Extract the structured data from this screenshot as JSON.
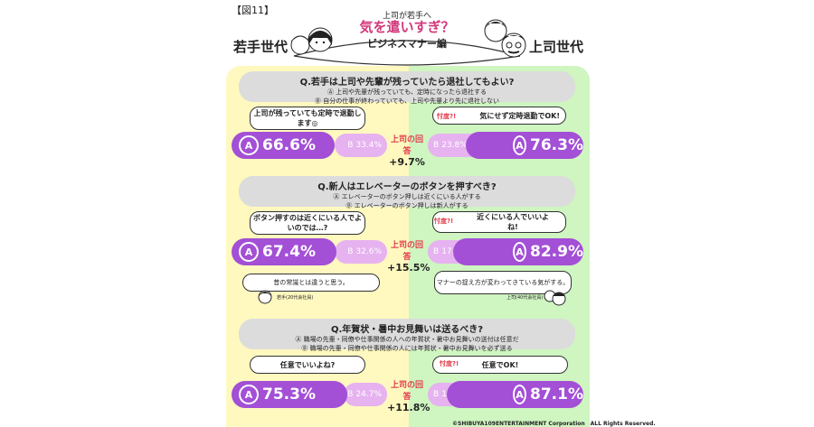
{
  "figure_label": "【図11】",
  "header": {
    "subtitle": "上司が若手へ",
    "title": "気を遣いすぎ？",
    "edition": "ビジネスマナー編",
    "young_gen": "若手世代",
    "boss_gen": "上司世代"
  },
  "result_label": "上司の回答",
  "sontaku": "忖度?!",
  "questions": [
    {
      "title": "Q.若手は上司や先輩が残っていたら退社してもよい?",
      "option_a": "Ⓐ 上司や先輩が残っていても、定時になったら退社する",
      "option_b": "Ⓑ 自分の仕事が終わっていても、上司や先輩より先に退社しない",
      "young_comment": "上司が残っていても定時で退勤します◎",
      "boss_comment": "気にせず定時退勤でOK!",
      "young_a": "66.6%",
      "young_b": "33.4%",
      "boss_a": "76.3%",
      "boss_b": "23.8%",
      "diff": "+9.7%"
    },
    {
      "title": "Q.新人はエレベーターのボタンを押すべき?",
      "option_a": "Ⓐ エレベーターのボタン押しは近くにいる人がする",
      "option_b": "Ⓑ エレベーターのボタン押しは新人がする",
      "young_comment": "ボタン押すのは近くにいる人でよいのでは…?",
      "boss_comment": "近くにいる人でいいよね!",
      "young_a": "67.4%",
      "young_b": "32.6%",
      "boss_a": "82.9%",
      "boss_b": "17.1%",
      "diff": "+15.5%",
      "young_note": "昔の常識とは違うと思う。",
      "young_note_caption": "若手(20代会社員)",
      "boss_note": "マナーの捉え方が変わってきている気がする。",
      "boss_note_caption": "上司(40代会社員)"
    },
    {
      "title": "Q.年賀状・暑中お見舞いは送るべき?",
      "option_a": "Ⓐ 職場の先輩・同僚や仕事関係の人への年賀状・暑中お見舞いの送付は任意だ",
      "option_b": "Ⓑ 職場の先輩・同僚や仕事関係の人には年賀状・暑中お見舞いを必ず送る",
      "young_comment": "任意でいいよね?",
      "boss_comment": "任意でOK!",
      "young_a": "75.3%",
      "young_b": "24.7%",
      "boss_a": "87.1%",
      "boss_b": "12.9%",
      "diff": "+11.8%"
    }
  ],
  "letter_a": "A",
  "letter_b": "B",
  "copyright": "©SHIBUYA109ENTERTAINMENT Corporation　ALL Rights Reserved.",
  "colors": {
    "young_bg": "#fff8bf",
    "boss_bg": "#cff5c1",
    "bar_main": "#a34fd6",
    "bar_sub": "#e6b2f0",
    "accent": "#e33c4b"
  },
  "chart_data": [
    {
      "type": "bar",
      "title": "Q.若手は上司や先輩が残っていたら退社してもよい?",
      "categories": [
        "Ⓐ",
        "Ⓑ"
      ],
      "series": [
        {
          "name": "若手世代",
          "values": [
            66.6,
            33.4
          ]
        },
        {
          "name": "上司世代",
          "values": [
            76.3,
            23.8
          ]
        }
      ]
    },
    {
      "type": "bar",
      "title": "Q.新人はエレベーターのボタンを押すべき?",
      "categories": [
        "Ⓐ",
        "Ⓑ"
      ],
      "series": [
        {
          "name": "若手世代",
          "values": [
            67.4,
            32.6
          ]
        },
        {
          "name": "上司世代",
          "values": [
            82.9,
            17.1
          ]
        }
      ]
    },
    {
      "type": "bar",
      "title": "Q.年賀状・暑中お見舞いは送るべき?",
      "categories": [
        "Ⓐ",
        "Ⓑ"
      ],
      "series": [
        {
          "name": "若手世代",
          "values": [
            75.3,
            24.7
          ]
        },
        {
          "name": "上司世代",
          "values": [
            87.1,
            12.9
          ]
        }
      ]
    }
  ]
}
